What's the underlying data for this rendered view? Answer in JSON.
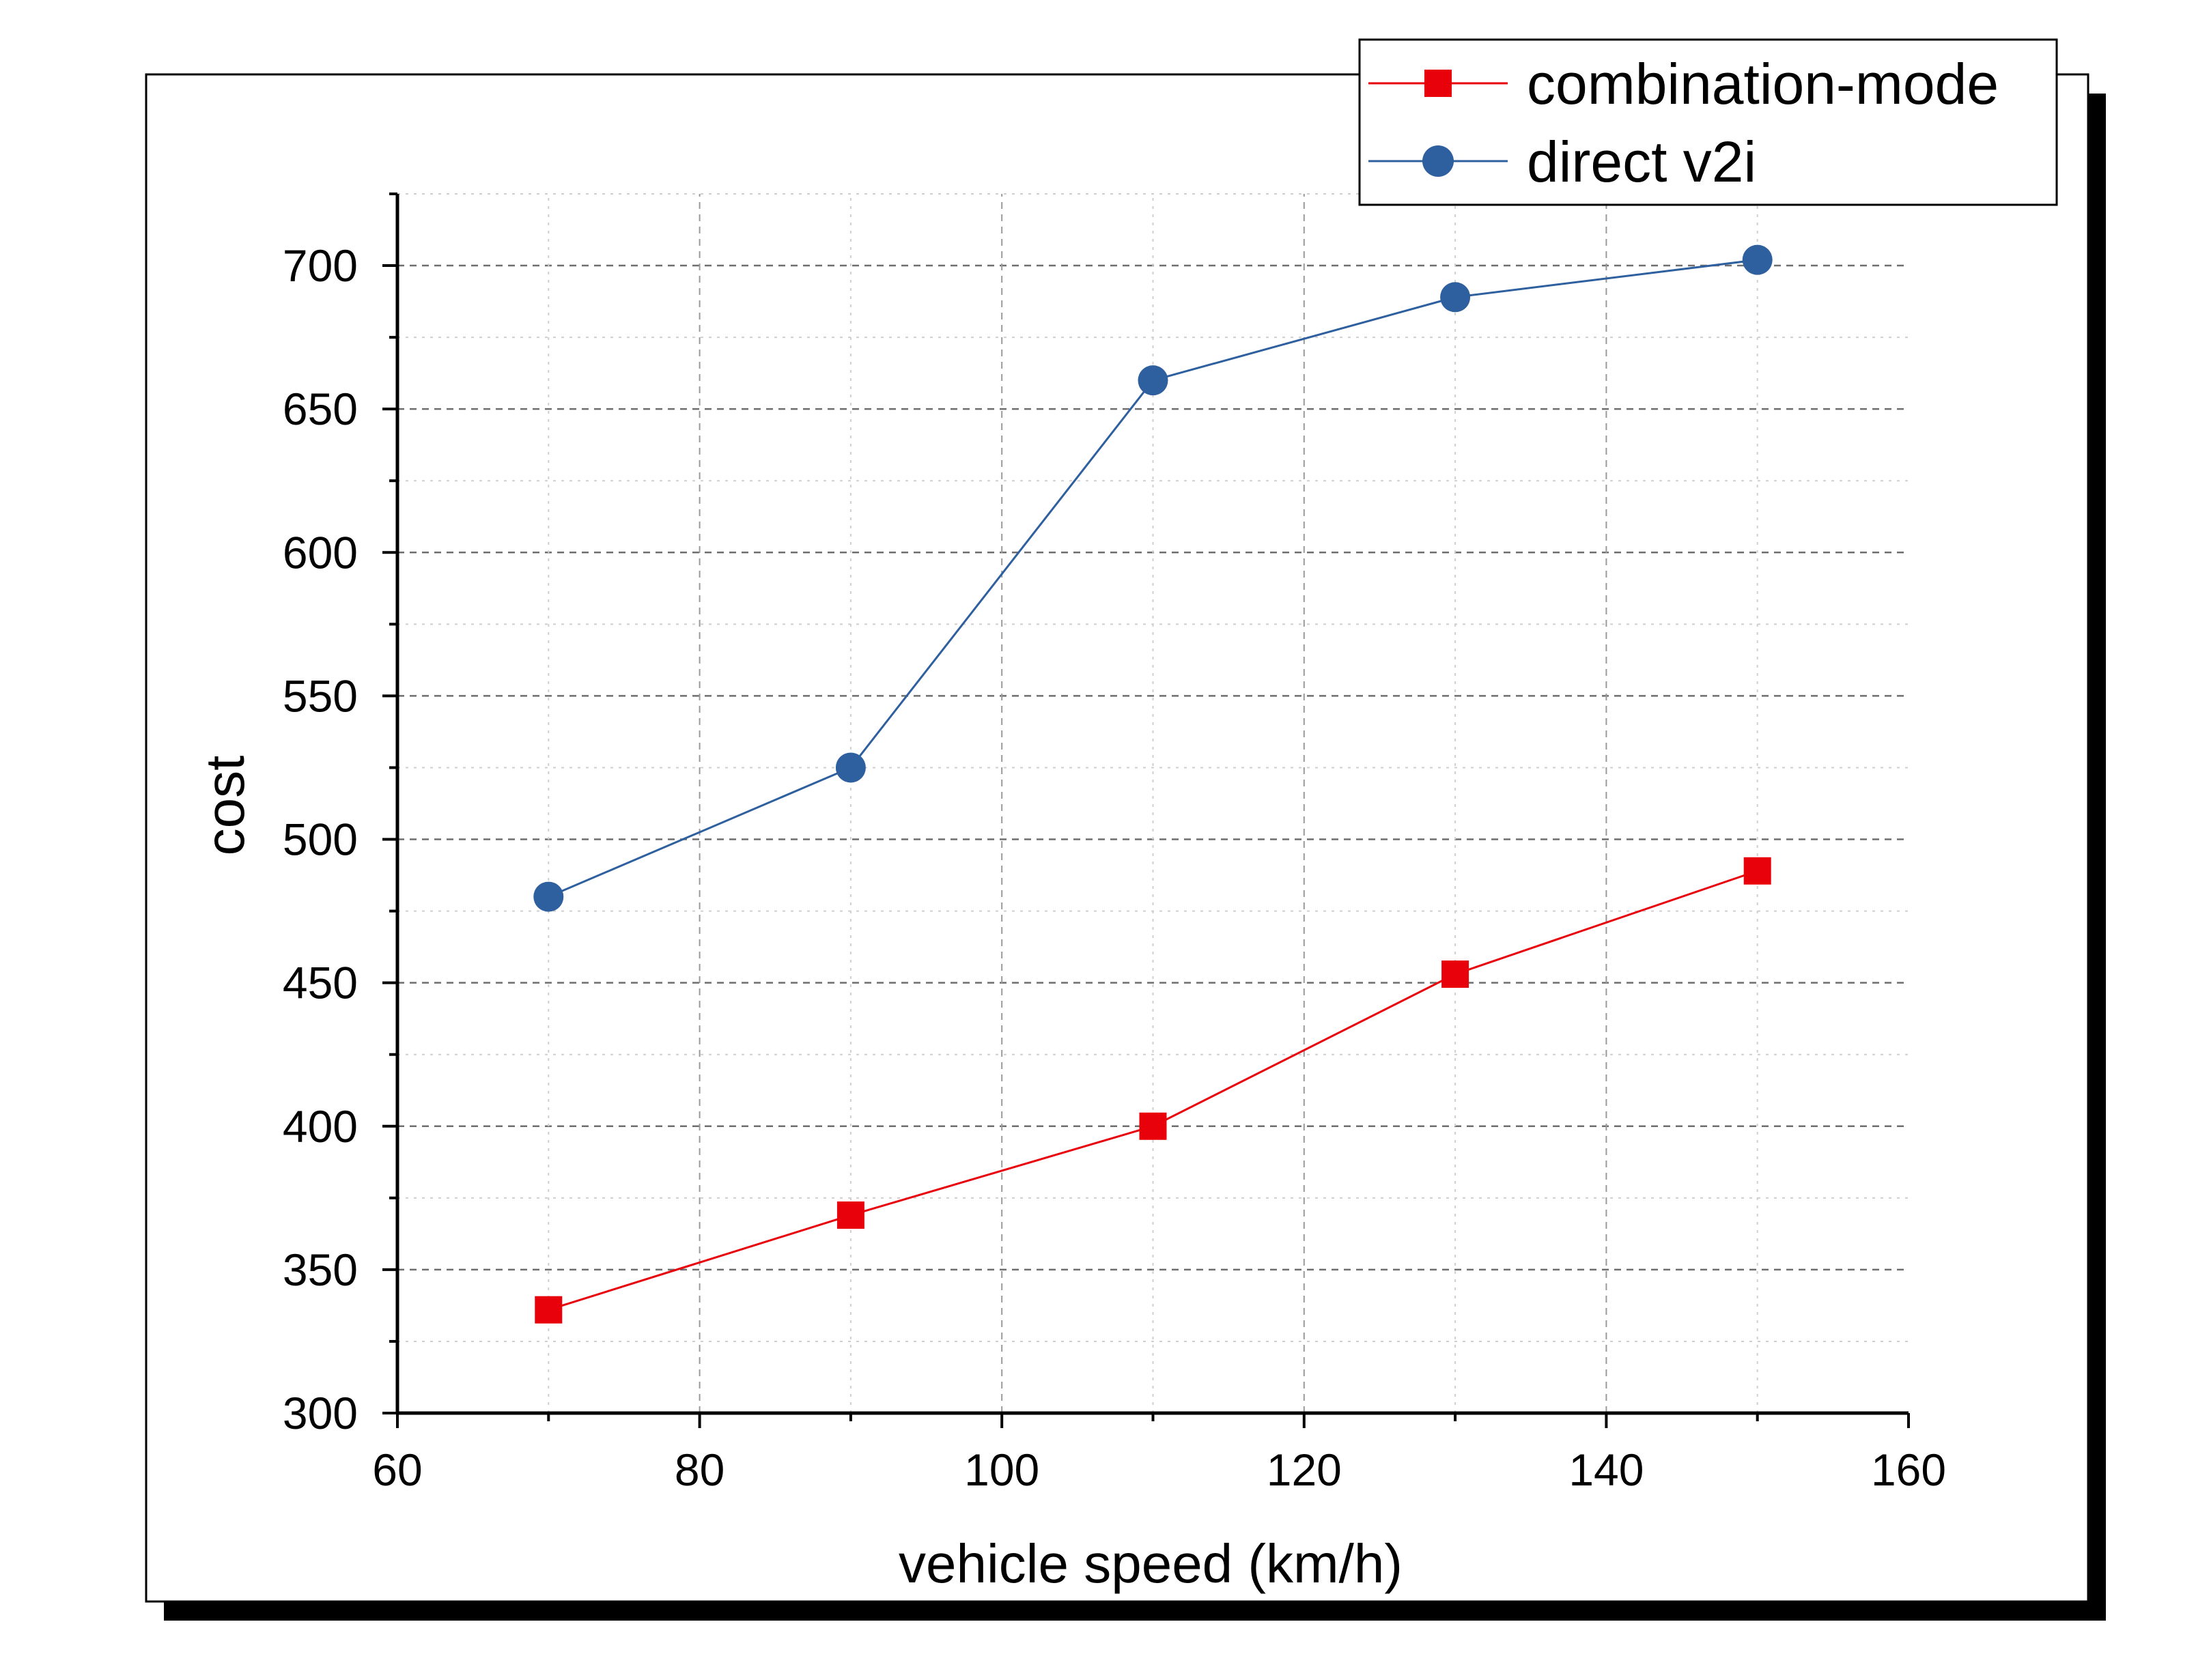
{
  "chart_data": {
    "type": "line",
    "title": "",
    "xlabel": "vehicle speed (km/h)",
    "ylabel": "cost",
    "xlim": [
      60,
      160
    ],
    "ylim": [
      300,
      725
    ],
    "x_ticks": [
      60,
      80,
      100,
      120,
      140,
      160
    ],
    "y_ticks": [
      300,
      350,
      400,
      450,
      500,
      550,
      600,
      650,
      700
    ],
    "x_tick_labels": [
      "60",
      "80",
      "100",
      "120",
      "140",
      "160"
    ],
    "y_tick_labels": [
      "300",
      "350",
      "400",
      "450",
      "500",
      "550",
      "600",
      "650",
      "700"
    ],
    "grid": true,
    "legend_position": "top-right",
    "x": [
      70,
      90,
      110,
      130,
      150
    ],
    "series": [
      {
        "name": "combination-mode",
        "color": "#e8000b",
        "marker": "square",
        "values": [
          336,
          369,
          400,
          453,
          489
        ]
      },
      {
        "name": "direct v2i",
        "color": "#2e5f9e",
        "marker": "circle",
        "values": [
          480,
          525,
          660,
          689,
          702
        ]
      }
    ]
  }
}
